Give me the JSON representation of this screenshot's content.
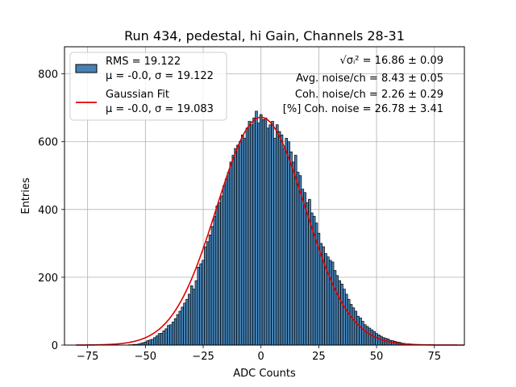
{
  "chart_data": {
    "type": "bar",
    "title": "Run 434, pedestal, hi Gain, Channels 28-31",
    "xlabel": "ADC Counts",
    "ylabel": "Entries",
    "xlim": [
      -85,
      88
    ],
    "ylim": [
      0,
      880
    ],
    "xticks": [
      -75,
      -50,
      -25,
      0,
      25,
      50,
      75
    ],
    "xtick_labels": [
      "−75",
      "−50",
      "−25",
      "0",
      "25",
      "50",
      "75"
    ],
    "yticks": [
      0,
      200,
      400,
      600,
      800
    ],
    "ytick_labels": [
      "0",
      "200",
      "400",
      "600",
      "800"
    ],
    "grid": true,
    "bin_width": 1,
    "histogram": {
      "name": "RMS = 19.122",
      "x": [
        -79,
        -78,
        -77,
        -76,
        -75,
        -74,
        -73,
        -72,
        -71,
        -70,
        -69,
        -68,
        -67,
        -66,
        -65,
        -64,
        -63,
        -62,
        -61,
        -60,
        -59,
        -58,
        -57,
        -56,
        -55,
        -54,
        -53,
        -52,
        -51,
        -50,
        -49,
        -48,
        -47,
        -46,
        -45,
        -44,
        -43,
        -42,
        -41,
        -40,
        -39,
        -38,
        -37,
        -36,
        -35,
        -34,
        -33,
        -32,
        -31,
        -30,
        -29,
        -28,
        -27,
        -26,
        -25,
        -24,
        -23,
        -22,
        -21,
        -20,
        -19,
        -18,
        -17,
        -16,
        -15,
        -14,
        -13,
        -12,
        -11,
        -10,
        -9,
        -8,
        -7,
        -6,
        -5,
        -4,
        -3,
        -2,
        -1,
        0,
        1,
        2,
        3,
        4,
        5,
        6,
        7,
        8,
        9,
        10,
        11,
        12,
        13,
        14,
        15,
        16,
        17,
        18,
        19,
        20,
        21,
        22,
        23,
        24,
        25,
        26,
        27,
        28,
        29,
        30,
        31,
        32,
        33,
        34,
        35,
        36,
        37,
        38,
        39,
        40,
        41,
        42,
        43,
        44,
        45,
        46,
        47,
        48,
        49,
        50,
        51,
        52,
        53,
        54,
        55,
        56,
        57,
        58,
        59,
        60,
        61,
        62,
        63,
        64,
        65,
        66,
        67,
        68,
        69,
        70,
        71,
        72,
        73,
        74,
        75,
        76,
        77,
        78,
        79,
        80,
        81,
        82,
        83,
        84,
        85,
        86,
        87
      ],
      "values": [
        0,
        0,
        0,
        0,
        0,
        0,
        0,
        0,
        0,
        0,
        0,
        0,
        0,
        0,
        0,
        0,
        0,
        0,
        0,
        0,
        0,
        0,
        1,
        1,
        2,
        2,
        3,
        5,
        7,
        9,
        13,
        15,
        17,
        22,
        27,
        34,
        35,
        42,
        48,
        58,
        60,
        68,
        78,
        90,
        100,
        112,
        124,
        135,
        150,
        175,
        165,
        190,
        230,
        240,
        250,
        290,
        305,
        325,
        350,
        380,
        410,
        420,
        440,
        470,
        490,
        510,
        540,
        560,
        580,
        590,
        600,
        620,
        610,
        640,
        660,
        650,
        670,
        690,
        655,
        680,
        665,
        670,
        640,
        650,
        660,
        610,
        650,
        630,
        620,
        580,
        610,
        600,
        570,
        540,
        560,
        510,
        500,
        460,
        450,
        420,
        430,
        390,
        380,
        360,
        330,
        300,
        290,
        270,
        260,
        250,
        245,
        220,
        205,
        190,
        180,
        165,
        150,
        135,
        120,
        110,
        100,
        85,
        80,
        70,
        60,
        55,
        50,
        45,
        40,
        34,
        30,
        26,
        22,
        20,
        18,
        14,
        13,
        11,
        9,
        8,
        6,
        5,
        4,
        4,
        3,
        2,
        2,
        1,
        1,
        1,
        0,
        0,
        0,
        0,
        0,
        0,
        0,
        0,
        0,
        0,
        0,
        0,
        0,
        0,
        0,
        0,
        0
      ],
      "color": "#4682b4",
      "edgecolor": "#000000"
    },
    "fit": {
      "name": "Gaussian Fit",
      "type": "gaussian",
      "mu": 0.0,
      "sigma": 19.083,
      "amplitude": 672,
      "color": "#e00000"
    },
    "legend": {
      "position": "top-left",
      "entries": [
        {
          "line1": "RMS = 19.122",
          "line2": "μ = -0.0, σ = 19.122",
          "marker": "patch"
        },
        {
          "line1": "Gaussian Fit",
          "line2": "μ = -0.0, σ = 19.083",
          "marker": "line"
        }
      ]
    },
    "annotations": [
      {
        "text": "√σᵢ² = 16.86 ± 0.09"
      },
      {
        "text": "Avg. noise/ch = 8.43 ± 0.05"
      },
      {
        "text": "Coh. noise/ch = 2.26 ± 0.29"
      },
      {
        "text": "[%] Coh. noise = 26.78 ± 3.41"
      }
    ]
  }
}
